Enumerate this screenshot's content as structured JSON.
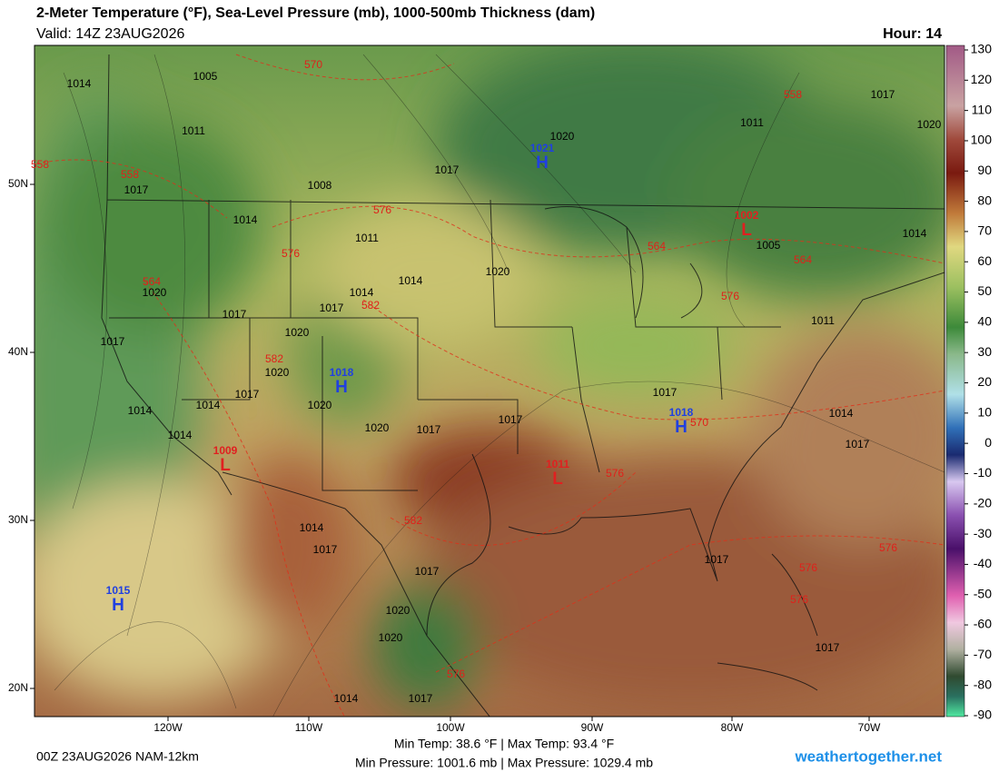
{
  "header": {
    "title": "2-Meter Temperature (°F), Sea-Level Pressure (mb), 1000-500mb Thickness (dam)",
    "valid": "Valid: 14Z 23AUG2026",
    "hour": "Hour: 14"
  },
  "colorbar": {
    "ticks": [
      130,
      120,
      110,
      100,
      90,
      80,
      70,
      60,
      50,
      40,
      30,
      20,
      10,
      0,
      -10,
      -20,
      -30,
      -40,
      -50,
      -60,
      -70,
      -80,
      -90
    ]
  },
  "axes": {
    "lon_labels": [
      "120W",
      "110W",
      "100W",
      "90W",
      "80W",
      "70W"
    ],
    "lat_labels": [
      "50N",
      "40N",
      "30N",
      "20N"
    ]
  },
  "pressure_centers": [
    {
      "symbol": "H",
      "pressure": 1021
    },
    {
      "symbol": "H",
      "pressure": 1018
    },
    {
      "symbol": "H",
      "pressure": 1018
    },
    {
      "symbol": "H",
      "pressure": 1015
    },
    {
      "symbol": "L",
      "pressure": 1002
    },
    {
      "symbol": "L",
      "pressure": 1009
    },
    {
      "symbol": "L",
      "pressure": 1011
    }
  ],
  "isobar_labels": [
    1014,
    1005,
    1011,
    1017,
    1008,
    1017,
    1020,
    1011,
    1017,
    1020,
    1011,
    1014,
    1014,
    1020,
    1020,
    1014,
    1017,
    1017,
    1020,
    1017,
    1020,
    1017,
    1020,
    1014,
    1014,
    1014,
    1020,
    1017,
    1017,
    1017,
    1005,
    1011,
    1014,
    1017,
    1014,
    1014,
    1017,
    1017,
    1020,
    1020,
    1014,
    1017,
    1017,
    1017
  ],
  "thickness_labels": [
    570,
    558,
    558,
    576,
    576,
    564,
    582,
    582,
    582,
    570,
    576,
    576,
    558,
    564,
    564,
    576,
    576,
    576,
    576
  ],
  "footer": {
    "run": "00Z 23AUG2026 NAM-12km",
    "temp_stats": "Min Temp:  38.6 °F | Max Temp:  93.4 °F",
    "pressure_stats": "Min Pressure:  1001.6 mb | Max Pressure:  1029.4 mb",
    "site": "weathertogether.net"
  }
}
